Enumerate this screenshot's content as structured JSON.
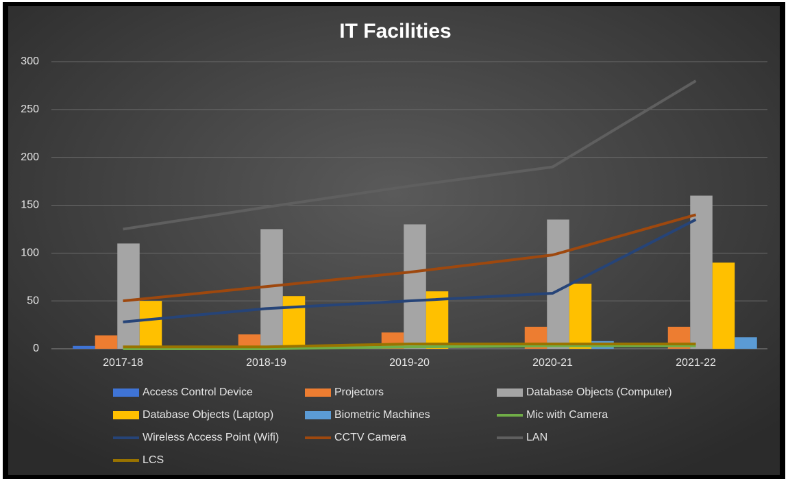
{
  "chart_data": {
    "type": "combo",
    "title": "IT Facilities",
    "categories": [
      "2017-18",
      "2018-19",
      "2019-20",
      "2020-21",
      "2021-22"
    ],
    "series": [
      {
        "name": "Access Control Device",
        "type": "bar",
        "color": "#3f74d6",
        "values": [
          3,
          0,
          0,
          0,
          0
        ]
      },
      {
        "name": "Projectors",
        "type": "bar",
        "color": "#ed7d31",
        "values": [
          14,
          15,
          17,
          23,
          23
        ]
      },
      {
        "name": "Database Objects (Computer)",
        "type": "bar",
        "color": "#a5a5a5",
        "values": [
          110,
          125,
          130,
          135,
          160
        ]
      },
      {
        "name": "Database Objects (Laptop)",
        "type": "bar",
        "color": "#ffc000",
        "values": [
          50,
          55,
          60,
          68,
          90
        ]
      },
      {
        "name": "Biometric Machines",
        "type": "bar",
        "color": "#5b9bd5",
        "values": [
          0,
          4,
          0,
          8,
          12
        ]
      },
      {
        "name": "Mic with Camera",
        "type": "line",
        "color": "#70ad47",
        "values": [
          0,
          0,
          2,
          3,
          3
        ]
      },
      {
        "name": "Wireless Access Point (Wifi)",
        "type": "line",
        "color": "#264478",
        "values": [
          28,
          42,
          50,
          58,
          135
        ]
      },
      {
        "name": "CCTV Camera",
        "type": "line",
        "color": "#9e480e",
        "values": [
          50,
          65,
          80,
          98,
          140
        ]
      },
      {
        "name": "LAN",
        "type": "line",
        "color": "#5f5f5f",
        "values": [
          125,
          148,
          170,
          190,
          280
        ]
      },
      {
        "name": "LCS",
        "type": "line",
        "color": "#997300",
        "values": [
          2,
          2,
          5,
          5,
          5
        ]
      }
    ],
    "ylim": [
      0,
      300
    ],
    "yticks": [
      0,
      50,
      100,
      150,
      200,
      250,
      300
    ],
    "grid": true,
    "legend": "bottom"
  }
}
